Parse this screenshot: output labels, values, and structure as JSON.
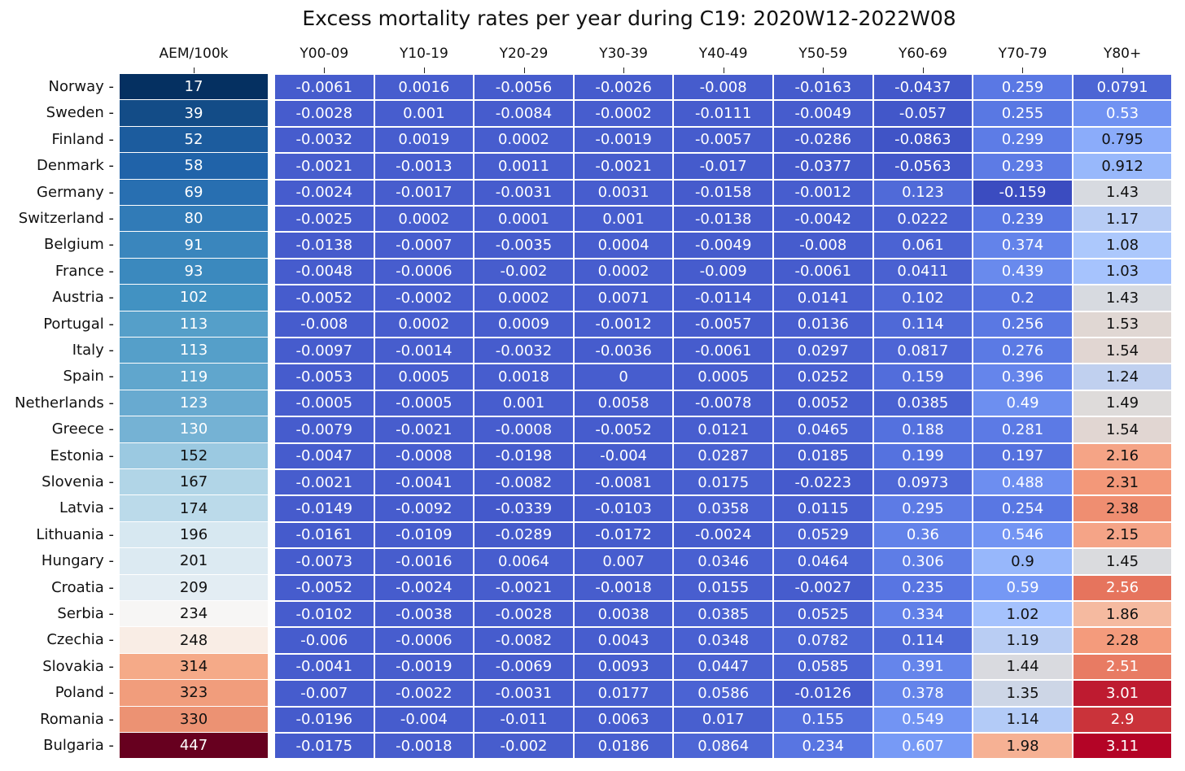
{
  "chart_data": {
    "type": "heatmap",
    "title": "Excess mortality rates per year during C19: 2020W12-2022W08",
    "aem_column": {
      "label": "AEM/100k",
      "colormap": "RdBu_r",
      "range": [
        17,
        447
      ]
    },
    "columns": [
      "Y00-09",
      "Y10-19",
      "Y20-29",
      "Y30-39",
      "Y40-49",
      "Y50-59",
      "Y60-69",
      "Y70-79",
      "Y80+"
    ],
    "matrix_colormap": "coolwarm",
    "matrix_range": [
      -0.159,
      3.11
    ],
    "rows": [
      {
        "country": "Norway",
        "aem": 17,
        "values": [
          -0.0061,
          0.0016,
          -0.0056,
          -0.0026,
          -0.008,
          -0.0163,
          -0.0437,
          0.259,
          0.0791
        ]
      },
      {
        "country": "Sweden",
        "aem": 39,
        "values": [
          -0.0028,
          0.001,
          -0.0084,
          -0.0002,
          -0.0111,
          -0.0049,
          -0.057,
          0.255,
          0.53
        ]
      },
      {
        "country": "Finland",
        "aem": 52,
        "values": [
          -0.0032,
          0.0019,
          0.0002,
          -0.0019,
          -0.0057,
          -0.0286,
          -0.0863,
          0.299,
          0.795
        ]
      },
      {
        "country": "Denmark",
        "aem": 58,
        "values": [
          -0.0021,
          -0.0013,
          0.0011,
          -0.0021,
          -0.017,
          -0.0377,
          -0.0563,
          0.293,
          0.912
        ]
      },
      {
        "country": "Germany",
        "aem": 69,
        "values": [
          -0.0024,
          -0.0017,
          -0.0031,
          0.0031,
          -0.0158,
          -0.0012,
          0.123,
          -0.159,
          1.43
        ]
      },
      {
        "country": "Switzerland",
        "aem": 80,
        "values": [
          -0.0025,
          0.0002,
          0.0001,
          0.001,
          -0.0138,
          -0.0042,
          0.0222,
          0.239,
          1.17
        ]
      },
      {
        "country": "Belgium",
        "aem": 91,
        "values": [
          -0.0138,
          -0.0007,
          -0.0035,
          0.0004,
          -0.0049,
          -0.008,
          0.061,
          0.374,
          1.08
        ]
      },
      {
        "country": "France",
        "aem": 93,
        "values": [
          -0.0048,
          -0.0006,
          -0.002,
          0.0002,
          -0.009,
          -0.0061,
          0.0411,
          0.439,
          1.03
        ]
      },
      {
        "country": "Austria",
        "aem": 102,
        "values": [
          -0.0052,
          -0.0002,
          0.0002,
          0.0071,
          -0.0114,
          0.0141,
          0.102,
          0.2,
          1.43
        ]
      },
      {
        "country": "Portugal",
        "aem": 113,
        "values": [
          -0.008,
          0.0002,
          0.0009,
          -0.0012,
          -0.0057,
          0.0136,
          0.114,
          0.256,
          1.53
        ]
      },
      {
        "country": "Italy",
        "aem": 113,
        "values": [
          -0.0097,
          -0.0014,
          -0.0032,
          -0.0036,
          -0.0061,
          0.0297,
          0.0817,
          0.276,
          1.54
        ]
      },
      {
        "country": "Spain",
        "aem": 119,
        "values": [
          -0.0053,
          0.0005,
          0.0018,
          0,
          0.0005,
          0.0252,
          0.159,
          0.396,
          1.24
        ]
      },
      {
        "country": "Netherlands",
        "aem": 123,
        "values": [
          -0.0005,
          -0.0005,
          0.001,
          0.0058,
          -0.0078,
          0.0052,
          0.0385,
          0.49,
          1.49
        ]
      },
      {
        "country": "Greece",
        "aem": 130,
        "values": [
          -0.0079,
          -0.0021,
          -0.0008,
          -0.0052,
          0.0121,
          0.0465,
          0.188,
          0.281,
          1.54
        ]
      },
      {
        "country": "Estonia",
        "aem": 152,
        "values": [
          -0.0047,
          -0.0008,
          -0.0198,
          -0.004,
          0.0287,
          0.0185,
          0.199,
          0.197,
          2.16
        ]
      },
      {
        "country": "Slovenia",
        "aem": 167,
        "values": [
          -0.0021,
          -0.0041,
          -0.0082,
          -0.0081,
          0.0175,
          -0.0223,
          0.0973,
          0.488,
          2.31
        ]
      },
      {
        "country": "Latvia",
        "aem": 174,
        "values": [
          -0.0149,
          -0.0092,
          -0.0339,
          -0.0103,
          0.0358,
          0.0115,
          0.295,
          0.254,
          2.38
        ]
      },
      {
        "country": "Lithuania",
        "aem": 196,
        "values": [
          -0.0161,
          -0.0109,
          -0.0289,
          -0.0172,
          -0.0024,
          0.0529,
          0.36,
          0.546,
          2.15
        ]
      },
      {
        "country": "Hungary",
        "aem": 201,
        "values": [
          -0.0073,
          -0.0016,
          0.0064,
          0.007,
          0.0346,
          0.0464,
          0.306,
          0.9,
          1.45
        ]
      },
      {
        "country": "Croatia",
        "aem": 209,
        "values": [
          -0.0052,
          -0.0024,
          -0.0021,
          -0.0018,
          0.0155,
          -0.0027,
          0.235,
          0.59,
          2.56
        ]
      },
      {
        "country": "Serbia",
        "aem": 234,
        "values": [
          -0.0102,
          -0.0038,
          -0.0028,
          0.0038,
          0.0385,
          0.0525,
          0.334,
          1.02,
          1.86
        ]
      },
      {
        "country": "Czechia",
        "aem": 248,
        "values": [
          -0.006,
          -0.0006,
          -0.0082,
          0.0043,
          0.0348,
          0.0782,
          0.114,
          1.19,
          2.28
        ]
      },
      {
        "country": "Slovakia",
        "aem": 314,
        "values": [
          -0.0041,
          -0.0019,
          -0.0069,
          0.0093,
          0.0447,
          0.0585,
          0.391,
          1.44,
          2.51
        ]
      },
      {
        "country": "Poland",
        "aem": 323,
        "values": [
          -0.007,
          -0.0022,
          -0.0031,
          0.0177,
          0.0586,
          -0.0126,
          0.378,
          1.35,
          3.01
        ]
      },
      {
        "country": "Romania",
        "aem": 330,
        "values": [
          -0.0196,
          -0.004,
          -0.011,
          0.0063,
          0.017,
          0.155,
          0.549,
          1.14,
          2.9
        ]
      },
      {
        "country": "Bulgaria",
        "aem": 447,
        "values": [
          -0.0175,
          -0.0018,
          -0.002,
          0.0186,
          0.0864,
          0.234,
          0.607,
          1.98,
          3.11
        ]
      }
    ]
  }
}
